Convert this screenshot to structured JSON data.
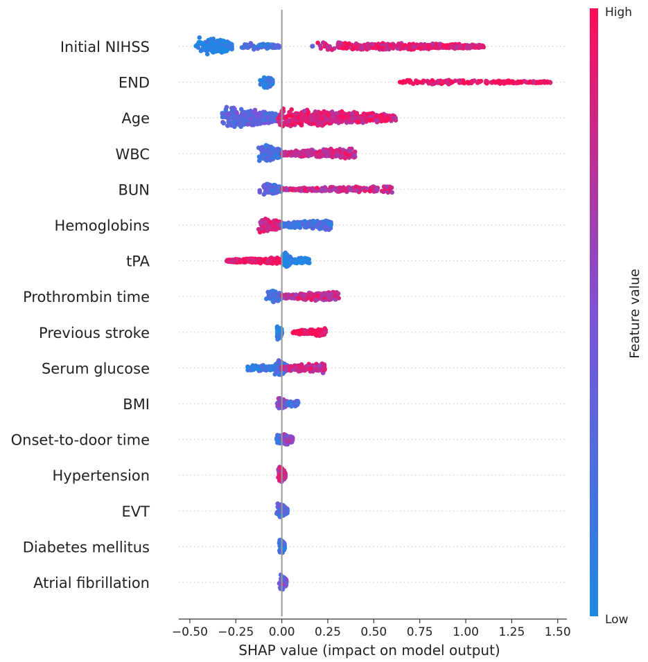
{
  "chart_data": {
    "type": "scatter",
    "subtype": "shap-beeswarm",
    "title": "",
    "xlabel": "SHAP value (impact on model output)",
    "ylabel": "",
    "xlim": [
      -0.56,
      1.55
    ],
    "x_ticks": [
      -0.5,
      -0.25,
      0.0,
      0.25,
      0.5,
      0.75,
      1.0,
      1.25,
      1.5
    ],
    "x_tick_labels": [
      "−0.50",
      "−0.25",
      "0.00",
      "0.25",
      "0.50",
      "0.75",
      "1.00",
      "1.25",
      "1.50"
    ],
    "colorbar": {
      "label": "Feature value",
      "high_label": "High",
      "low_label": "Low",
      "low_color": "#1e88e5",
      "high_color": "#ff0d57"
    },
    "features": [
      {
        "name": "Initial NIHSS",
        "clusters": [
          {
            "lo": -0.48,
            "hi": -0.27,
            "c": 0.02,
            "w": 16,
            "n": 260,
            "p": 0.45
          },
          {
            "lo": -0.24,
            "hi": -0.01,
            "c": 0.22,
            "w": 6,
            "n": 90,
            "p": 0.7
          },
          {
            "lo": 0.13,
            "hi": 0.17,
            "c": 0.35,
            "w": 2,
            "n": 3,
            "p": 0.5
          },
          {
            "lo": 0.18,
            "hi": 1.1,
            "c": 0.88,
            "w": 7,
            "n": 420,
            "p": 0.7
          }
        ]
      },
      {
        "name": "END",
        "clusters": [
          {
            "lo": -0.13,
            "hi": -0.05,
            "c": 0.08,
            "w": 13,
            "n": 160,
            "p": 0.3
          },
          {
            "lo": 0.64,
            "hi": 1.46,
            "c": 0.97,
            "w": 4,
            "n": 180,
            "p": 0.8
          }
        ]
      },
      {
        "name": "Age",
        "clusters": [
          {
            "lo": -0.34,
            "hi": -0.02,
            "c": 0.35,
            "w": 17,
            "n": 420,
            "p": 0.55
          },
          {
            "lo": -0.02,
            "hi": 0.62,
            "c": 0.85,
            "w": 14,
            "n": 480,
            "p": 0.9
          }
        ]
      },
      {
        "name": "WBC",
        "clusters": [
          {
            "lo": -0.13,
            "hi": 0.0,
            "c": 0.2,
            "w": 15,
            "n": 220,
            "p": 0.5
          },
          {
            "lo": 0.0,
            "hi": 0.4,
            "c": 0.78,
            "w": 9,
            "n": 260,
            "p": 1.0
          }
        ]
      },
      {
        "name": "BUN",
        "clusters": [
          {
            "lo": -0.13,
            "hi": 0.0,
            "c": 0.3,
            "w": 11,
            "n": 170,
            "p": 0.35
          },
          {
            "lo": 0.0,
            "hi": 0.6,
            "c": 0.8,
            "w": 5,
            "n": 240,
            "p": 1.1
          }
        ]
      },
      {
        "name": "Hemoglobins",
        "clusters": [
          {
            "lo": -0.15,
            "hi": 0.0,
            "c": 0.82,
            "w": 13,
            "n": 200,
            "p": 0.35
          },
          {
            "lo": 0.0,
            "hi": 0.27,
            "c": 0.22,
            "w": 8,
            "n": 220,
            "p": 1.3
          }
        ]
      },
      {
        "name": "tPA",
        "clusters": [
          {
            "lo": -0.3,
            "hi": 0.0,
            "c": 0.96,
            "w": 5,
            "n": 260,
            "p": 1.0
          },
          {
            "lo": 0.0,
            "hi": 0.05,
            "c": 0.03,
            "w": 15,
            "n": 140,
            "p": 0.5
          },
          {
            "lo": 0.05,
            "hi": 0.15,
            "c": 0.04,
            "w": 6,
            "n": 70,
            "p": 1.0
          }
        ]
      },
      {
        "name": "Prothrombin time",
        "clusters": [
          {
            "lo": -0.12,
            "hi": 0.0,
            "c": 0.2,
            "w": 13,
            "n": 180,
            "p": 0.25
          },
          {
            "lo": 0.0,
            "hi": 0.31,
            "c": 0.78,
            "w": 8,
            "n": 220,
            "p": 1.2
          }
        ]
      },
      {
        "name": "Previous stroke",
        "clusters": [
          {
            "lo": -0.03,
            "hi": 0.0,
            "c": 0.05,
            "w": 14,
            "n": 140,
            "p": 0.5
          },
          {
            "lo": 0.06,
            "hi": 0.24,
            "c": 0.96,
            "w": 6,
            "n": 160,
            "p": 1.0
          }
        ]
      },
      {
        "name": "Serum glucose",
        "clusters": [
          {
            "lo": -0.19,
            "hi": 0.0,
            "c": 0.12,
            "w": 6,
            "n": 150,
            "p": 0.6
          },
          {
            "lo": -0.04,
            "hi": 0.03,
            "c": 0.25,
            "w": 15,
            "n": 130,
            "p": 0.5
          },
          {
            "lo": 0.0,
            "hi": 0.24,
            "c": 0.78,
            "w": 8,
            "n": 170,
            "p": 1.2
          }
        ]
      },
      {
        "name": "BMI",
        "clusters": [
          {
            "lo": -0.03,
            "hi": 0.03,
            "c": 0.55,
            "w": 11,
            "n": 150,
            "p": 0.5
          },
          {
            "lo": 0.02,
            "hi": 0.09,
            "c": 0.25,
            "w": 6,
            "n": 60,
            "p": 1.0
          }
        ]
      },
      {
        "name": "Onset-to-door time",
        "clusters": [
          {
            "lo": -0.03,
            "hi": 0.0,
            "c": 0.2,
            "w": 10,
            "n": 80,
            "p": 0.5
          },
          {
            "lo": 0.0,
            "hi": 0.06,
            "c": 0.6,
            "w": 11,
            "n": 100,
            "p": 0.7
          }
        ]
      },
      {
        "name": "Hypertension",
        "clusters": [
          {
            "lo": -0.02,
            "hi": 0.02,
            "c": 0.8,
            "w": 14,
            "n": 180,
            "p": 0.5
          }
        ]
      },
      {
        "name": "EVT",
        "clusters": [
          {
            "lo": -0.03,
            "hi": 0.03,
            "c": 0.3,
            "w": 14,
            "n": 170,
            "p": 0.5
          }
        ]
      },
      {
        "name": "Diabetes mellitus",
        "clusters": [
          {
            "lo": -0.015,
            "hi": 0.015,
            "c": 0.2,
            "w": 14,
            "n": 150,
            "p": 0.5
          }
        ]
      },
      {
        "name": "Atrial fibrillation",
        "clusters": [
          {
            "lo": -0.015,
            "hi": 0.025,
            "c": 0.45,
            "w": 14,
            "n": 150,
            "p": 0.5
          }
        ]
      }
    ]
  }
}
